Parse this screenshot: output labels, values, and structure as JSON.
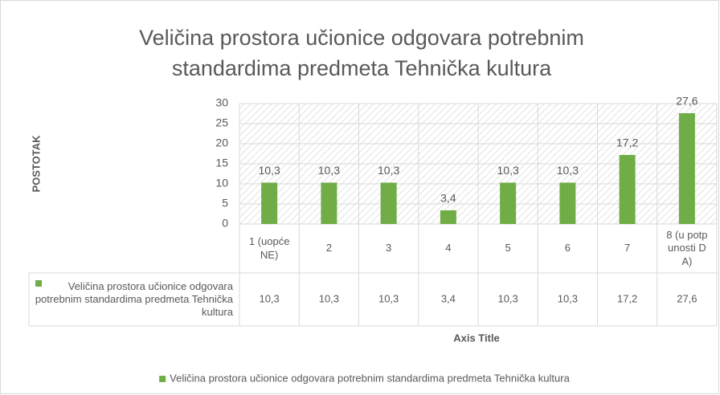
{
  "chart_data": {
    "type": "bar",
    "title": "Veličina prostora učionice odgovara potrebnim standardima predmeta Tehnička kultura",
    "y_label": "POSTOTAK",
    "x_label": "Axis Title",
    "categories": [
      "1 (uopće NE)",
      "2",
      "3",
      "4",
      "5",
      "6",
      "7",
      "8 (u potpunosti DA)"
    ],
    "series": [
      {
        "name": "Veličina prostora učionice odgovara potrebnim standardima predmeta Tehnička kultura",
        "color": "#70ad47",
        "values": [
          10.3,
          10.3,
          10.3,
          3.4,
          10.3,
          10.3,
          17.2,
          27.6
        ],
        "value_labels": [
          "10,3",
          "10,3",
          "10,3",
          "3,4",
          "10,3",
          "10,3",
          "17,2",
          "27,6"
        ]
      }
    ],
    "ylim": [
      0,
      30
    ],
    "yticks": [
      0,
      5,
      10,
      15,
      20,
      25,
      30
    ],
    "grid": true,
    "data_table": true,
    "legend": "bottom"
  }
}
